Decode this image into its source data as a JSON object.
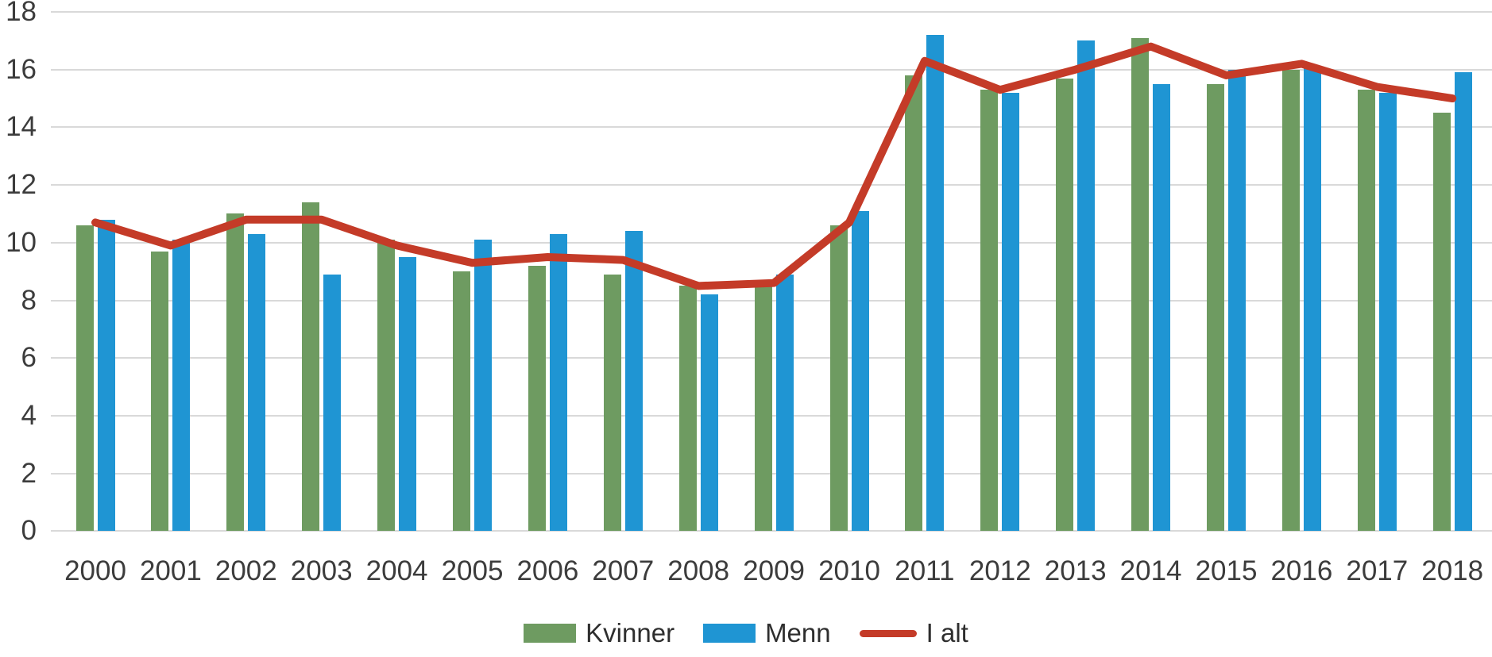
{
  "chart_data": {
    "type": "bar",
    "title": "",
    "xlabel": "",
    "ylabel": "",
    "categories": [
      "2000",
      "2001",
      "2002",
      "2003",
      "2004",
      "2005",
      "2006",
      "2007",
      "2008",
      "2009",
      "2010",
      "2011",
      "2012",
      "2013",
      "2014",
      "2015",
      "2016",
      "2017",
      "2018"
    ],
    "series": [
      {
        "name": "Kvinner",
        "type": "bar",
        "color": "#6e9b61",
        "values": [
          10.6,
          9.7,
          11.0,
          11.4,
          10.1,
          9.0,
          9.2,
          8.9,
          8.5,
          8.5,
          10.6,
          15.8,
          15.3,
          15.7,
          17.1,
          15.5,
          16.0,
          15.3,
          14.5
        ]
      },
      {
        "name": "Menn",
        "type": "bar",
        "color": "#1f95d3",
        "values": [
          10.8,
          10.1,
          10.3,
          8.9,
          9.5,
          10.1,
          10.3,
          10.4,
          8.2,
          8.9,
          11.1,
          17.2,
          15.2,
          17.0,
          15.5,
          16.0,
          16.1,
          15.2,
          15.9
        ]
      },
      {
        "name": "I alt",
        "type": "line",
        "color": "#c43b28",
        "values": [
          10.7,
          9.9,
          10.8,
          10.8,
          9.9,
          9.3,
          9.5,
          9.4,
          8.5,
          8.6,
          10.7,
          16.3,
          15.3,
          16.0,
          16.8,
          15.8,
          16.2,
          15.4,
          15.0
        ]
      }
    ],
    "ylim": [
      0,
      18
    ],
    "y_ticks": [
      0,
      2,
      4,
      6,
      8,
      10,
      12,
      14,
      16,
      18
    ],
    "grid": true,
    "legend_position": "bottom"
  },
  "colors": {
    "gridline": "#d9d9d9",
    "text": "#3c3c3c",
    "background": "#ffffff"
  }
}
